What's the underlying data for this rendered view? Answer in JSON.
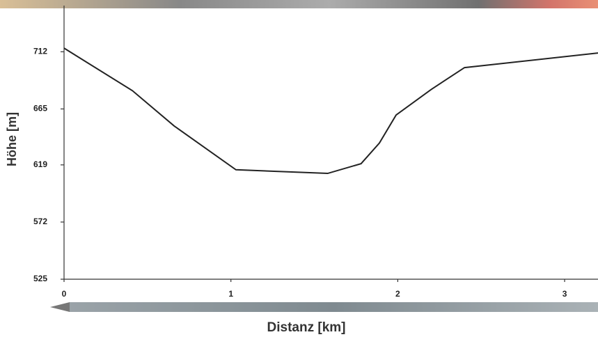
{
  "chart_data": {
    "type": "line",
    "x_label": "Distanz [km]",
    "y_label": "Höhe [m]",
    "x": [
      0,
      0.41,
      0.66,
      1.03,
      1.58,
      1.78,
      1.89,
      1.99,
      2.2,
      2.4,
      3.2
    ],
    "values": [
      715,
      680,
      651,
      615,
      612,
      620,
      637,
      660,
      681,
      699,
      711
    ],
    "color": "#222222",
    "xlim": [
      0,
      3.2
    ],
    "xticks": [
      0,
      1,
      2,
      3
    ],
    "ylim": [
      525,
      750
    ],
    "yticks": [
      525,
      572,
      619,
      665,
      712
    ]
  }
}
